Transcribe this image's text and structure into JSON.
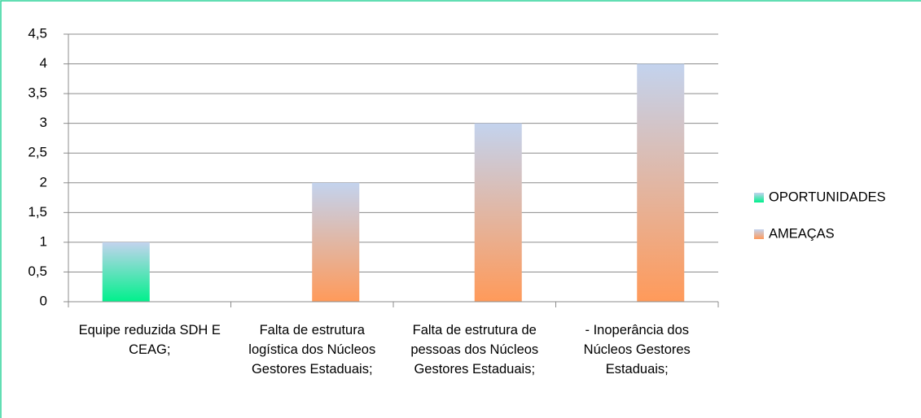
{
  "chart_data": {
    "type": "bar",
    "categories": [
      "Equipe reduzida SDH E CEAG;",
      "Falta de estrutura logística dos Núcleos Gestores Estaduais;",
      "Falta de estrutura de pessoas dos Núcleos Gestores Estaduais;",
      "- Inoperância dos Núcleos Gestores Estaduais;"
    ],
    "series": [
      {
        "name": "OPORTUNIDADES",
        "color": "#00f08c",
        "values": [
          1,
          null,
          null,
          null
        ]
      },
      {
        "name": "AMEAÇAS",
        "color": "#ff9a5a",
        "values": [
          null,
          2,
          3,
          4
        ]
      }
    ],
    "ylim": [
      0,
      4.5
    ],
    "yticks": [
      0,
      {
        "value": 0.5,
        "label": "0,5"
      },
      1,
      {
        "value": 1.5,
        "label": "1,5"
      },
      2,
      {
        "value": 2.5,
        "label": "2,5"
      },
      3,
      {
        "value": 3.5,
        "label": "3,5"
      },
      4,
      {
        "value": 4.5,
        "label": "4,5"
      }
    ],
    "grid": true,
    "legend": "right"
  }
}
